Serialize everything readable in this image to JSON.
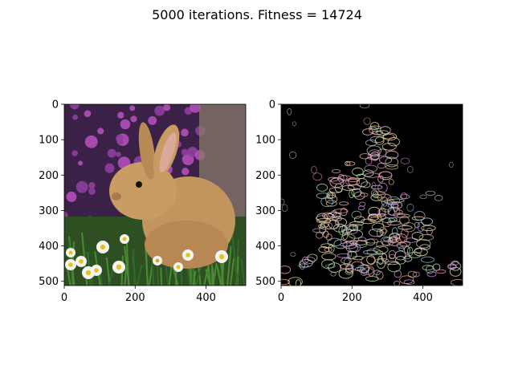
{
  "figure": {
    "title": "5000 iterations. Fitness = 14724"
  },
  "chart_data": [
    {
      "type": "image",
      "name": "",
      "content": "photo of a brown rabbit sitting in grass among white daisies and purple flowers",
      "xlim": [
        0,
        512
      ],
      "ylim": [
        512,
        0
      ],
      "xticks": [
        0,
        200,
        400
      ],
      "yticks": [
        0,
        100,
        200,
        300,
        400,
        500
      ]
    },
    {
      "type": "image",
      "name": "",
      "content": "evolved approximation made of many small colored outlined glyph shapes forming a rabbit silhouette on black",
      "xlim": [
        0,
        512
      ],
      "ylim": [
        512,
        0
      ],
      "xticks": [
        0,
        200,
        400
      ],
      "yticks": [
        0,
        100,
        200,
        300,
        400,
        500
      ]
    }
  ],
  "colors": {
    "left_bg_top": "#4a2a5e",
    "left_flowers": "#b04fb8",
    "left_grass": "#2f5a26",
    "rabbit": "#c79a62",
    "rabbit_dark": "#9a6e40",
    "right_bg": "#000000"
  }
}
